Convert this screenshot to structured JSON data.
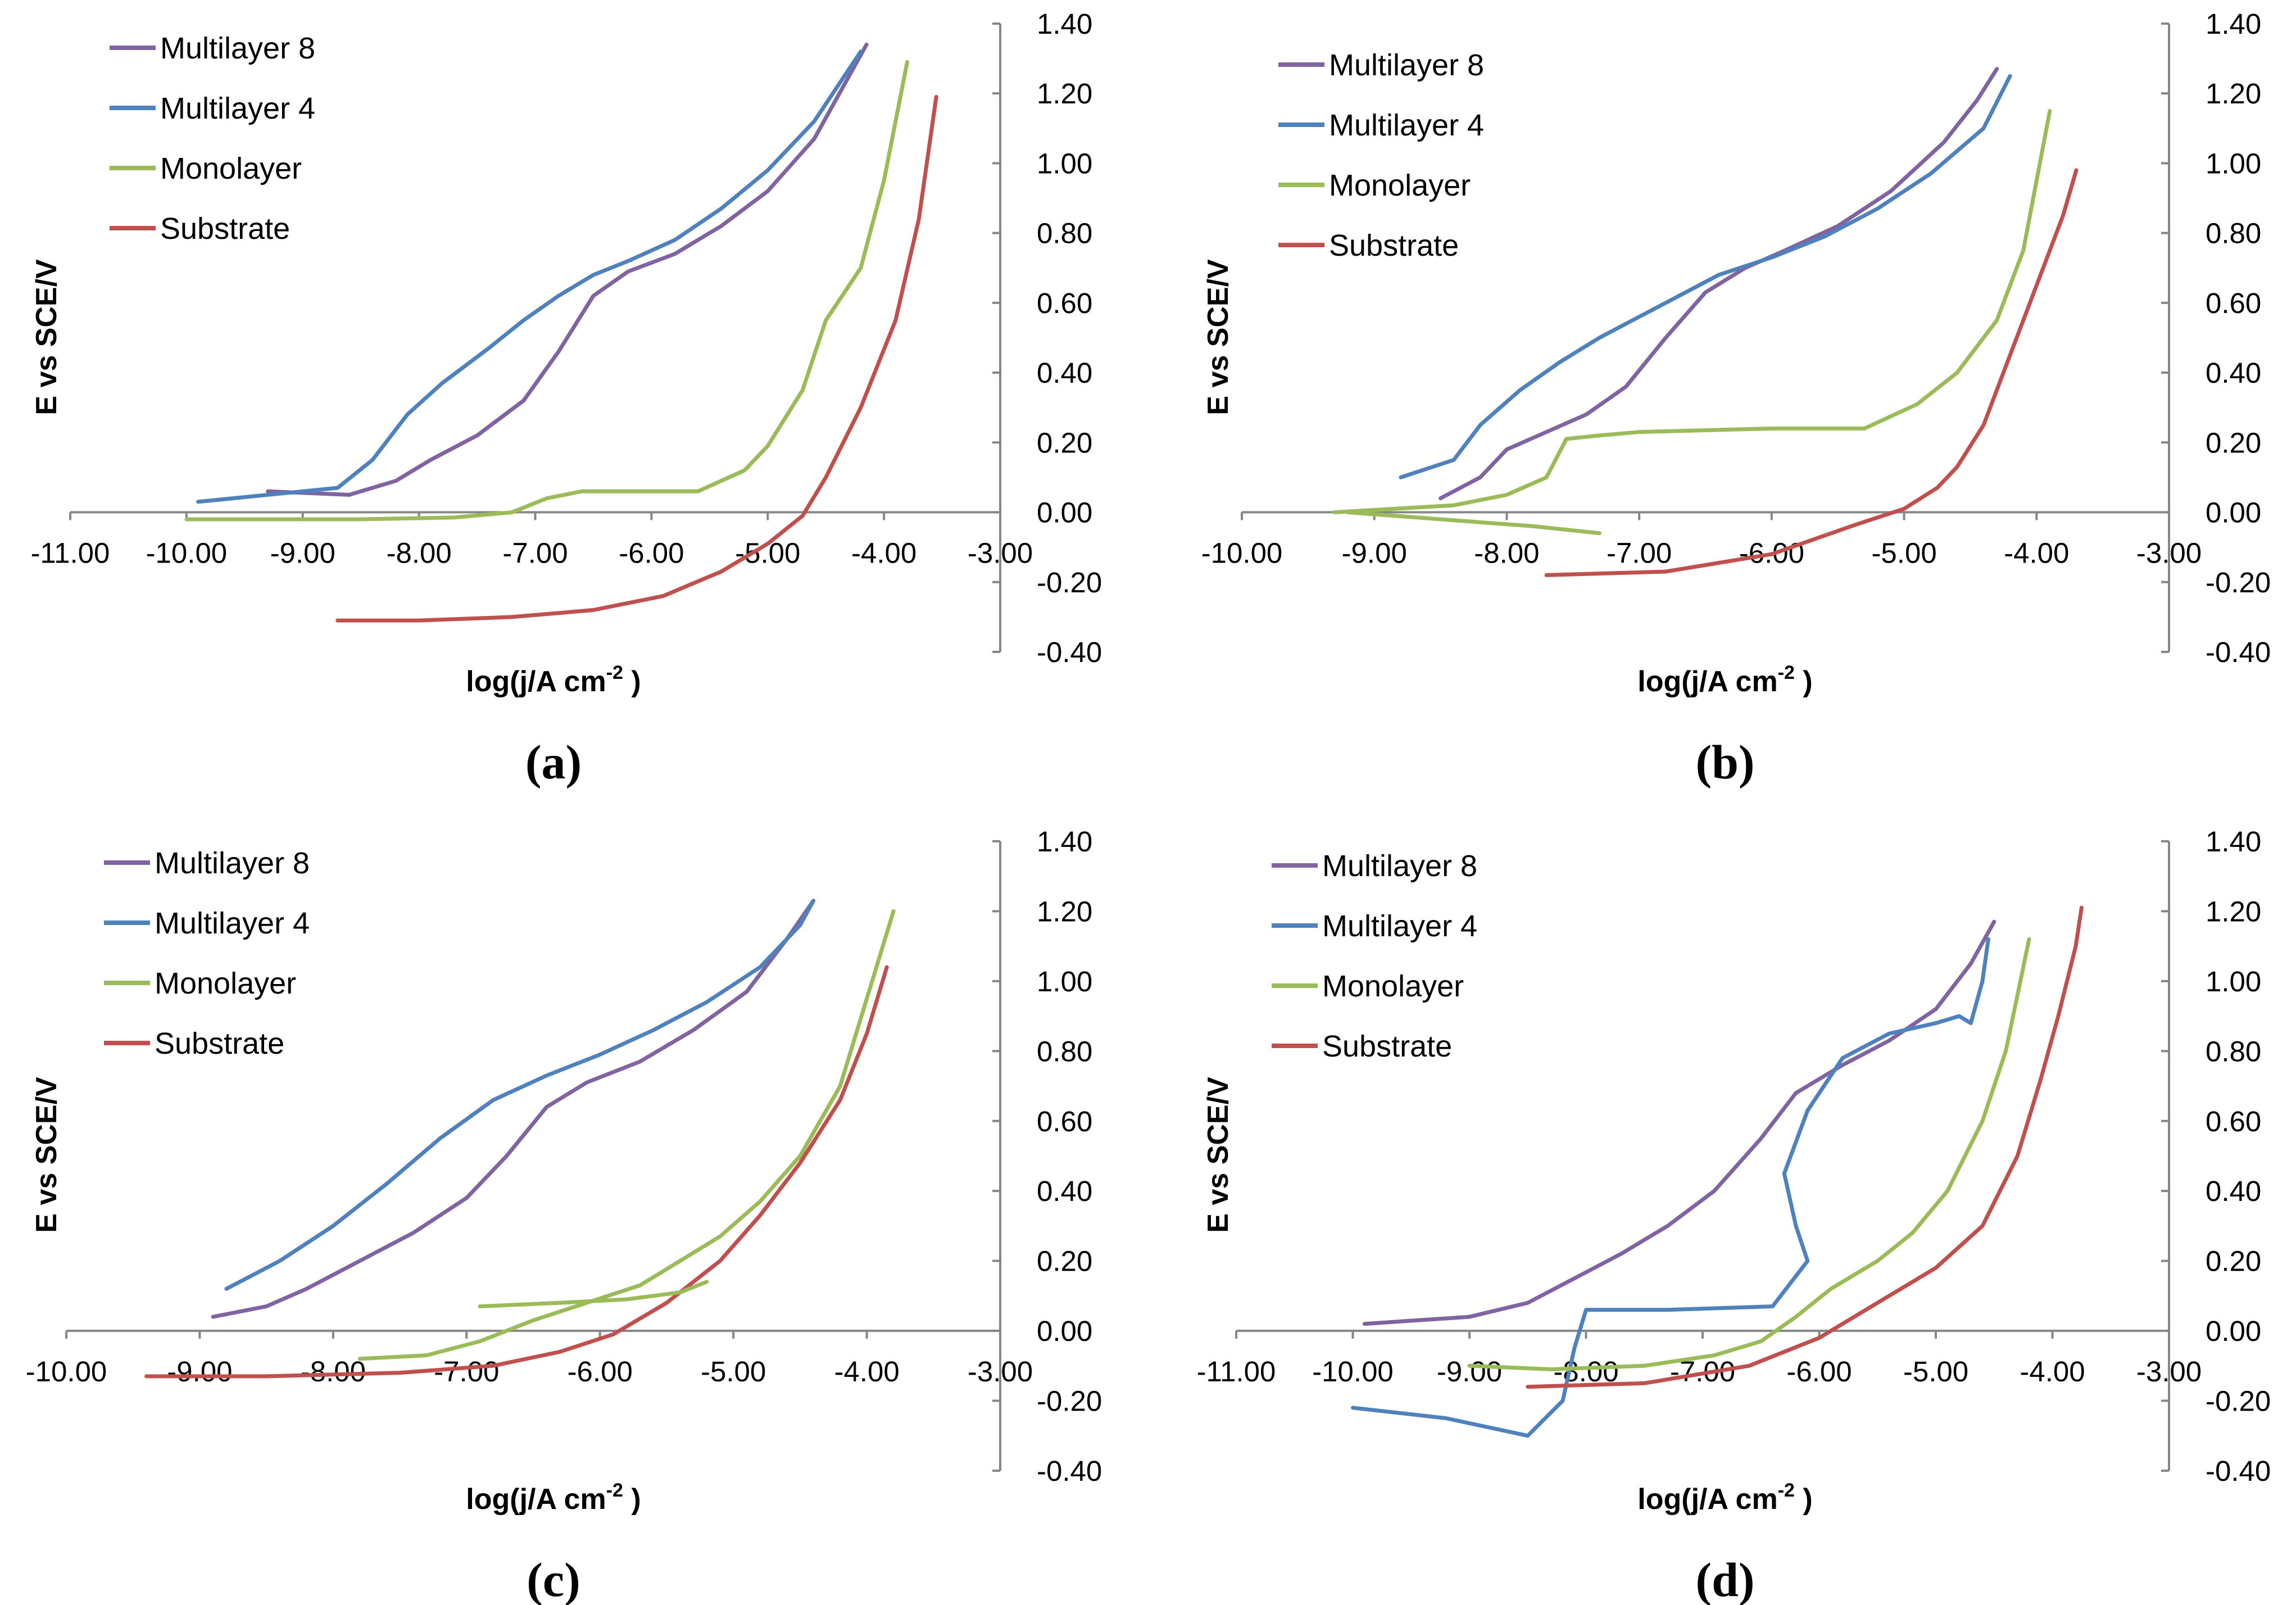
{
  "chart_data": [
    {
      "panel": "(a)",
      "type": "line",
      "xlabel": "log(j/A cm",
      "xlabel_sup": "-2",
      "xlabel_end": " )",
      "ylabel": "E vs SCE/V",
      "xlim": [
        -11.0,
        -3.0
      ],
      "ylim": [
        -0.4,
        1.4
      ],
      "x_ticks": [
        "-11.00",
        "-10.00",
        "-9.00",
        "-8.00",
        "-7.00",
        "-6.00",
        "-5.00",
        "-4.00",
        "-3.00"
      ],
      "y_ticks": [
        "-0.40",
        "-0.20",
        "0.00",
        "0.20",
        "0.40",
        "0.60",
        "0.80",
        "1.00",
        "1.20",
        "1.40"
      ],
      "legend": [
        "Multilayer 8",
        "Multilayer 4",
        "Monolayer",
        "Substrate"
      ],
      "series": [
        {
          "name": "Multilayer 8",
          "color": "#8064A2",
          "x": [
            -9.3,
            -8.6,
            -8.2,
            -7.9,
            -7.5,
            -7.1,
            -6.8,
            -6.5,
            -6.2,
            -5.8,
            -5.4,
            -5.0,
            -4.6,
            -4.3,
            -4.15
          ],
          "y": [
            0.06,
            0.05,
            0.09,
            0.15,
            0.22,
            0.32,
            0.46,
            0.62,
            0.69,
            0.74,
            0.82,
            0.92,
            1.07,
            1.25,
            1.34
          ]
        },
        {
          "name": "Multilayer 4",
          "color": "#4F81BD",
          "x": [
            -9.9,
            -8.7,
            -8.4,
            -8.1,
            -7.8,
            -7.4,
            -7.1,
            -6.8,
            -6.5,
            -6.2,
            -5.8,
            -5.4,
            -5.0,
            -4.6,
            -4.3,
            -4.2
          ],
          "y": [
            0.03,
            0.07,
            0.15,
            0.28,
            0.37,
            0.47,
            0.55,
            0.62,
            0.68,
            0.72,
            0.78,
            0.87,
            0.98,
            1.12,
            1.27,
            1.32
          ]
        },
        {
          "name": "Monolayer",
          "color": "#9BBB59",
          "x": [
            -10.0,
            -8.5,
            -7.7,
            -7.2,
            -6.9,
            -6.6,
            -5.6,
            -5.2,
            -5.0,
            -4.7,
            -4.5,
            -4.2,
            -4.0,
            -3.8
          ],
          "y": [
            -0.02,
            -0.02,
            -0.015,
            0.0,
            0.04,
            0.06,
            0.06,
            0.12,
            0.19,
            0.35,
            0.55,
            0.7,
            0.95,
            1.29
          ]
        },
        {
          "name": "Substrate",
          "color": "#C0504D",
          "x": [
            -8.7,
            -8.0,
            -7.2,
            -6.5,
            -5.9,
            -5.4,
            -5.0,
            -4.7,
            -4.5,
            -4.2,
            -3.9,
            -3.7,
            -3.55
          ],
          "y": [
            -0.31,
            -0.31,
            -0.3,
            -0.28,
            -0.24,
            -0.17,
            -0.09,
            -0.01,
            0.1,
            0.3,
            0.55,
            0.84,
            1.19
          ]
        }
      ]
    },
    {
      "panel": "(b)",
      "type": "line",
      "xlabel": "log(j/A cm",
      "xlabel_sup": "-2",
      "xlabel_end": " )",
      "ylabel": "E vs SCE/V",
      "xlim": [
        -10.0,
        -3.0
      ],
      "ylim": [
        -0.4,
        1.4
      ],
      "x_ticks": [
        "-10.00",
        "-9.00",
        "-8.00",
        "-7.00",
        "-6.00",
        "-5.00",
        "-4.00",
        "-3.00"
      ],
      "y_ticks": [
        "-0.40",
        "-0.20",
        "0.00",
        "0.20",
        "0.40",
        "0.60",
        "0.80",
        "1.00",
        "1.20",
        "1.40"
      ],
      "legend": [
        "Multilayer 8",
        "Multilayer 4",
        "Monolayer",
        "Substrate"
      ],
      "series": [
        {
          "name": "Multilayer 8",
          "color": "#8064A2",
          "x": [
            -8.5,
            -8.2,
            -8.0,
            -7.7,
            -7.4,
            -7.1,
            -6.8,
            -6.5,
            -6.2,
            -5.9,
            -5.5,
            -5.1,
            -4.7,
            -4.45,
            -4.3
          ],
          "y": [
            0.04,
            0.1,
            0.18,
            0.23,
            0.28,
            0.36,
            0.5,
            0.63,
            0.7,
            0.75,
            0.82,
            0.92,
            1.06,
            1.18,
            1.27
          ]
        },
        {
          "name": "Multilayer 4",
          "color": "#4F81BD",
          "x": [
            -8.8,
            -8.4,
            -8.2,
            -7.9,
            -7.6,
            -7.3,
            -7.0,
            -6.7,
            -6.4,
            -6.0,
            -5.6,
            -5.2,
            -4.8,
            -4.4,
            -4.2
          ],
          "y": [
            0.1,
            0.15,
            0.25,
            0.35,
            0.43,
            0.5,
            0.56,
            0.62,
            0.68,
            0.73,
            0.79,
            0.87,
            0.97,
            1.1,
            1.25
          ]
        },
        {
          "name": "Monolayer",
          "color": "#9BBB59",
          "x": [
            -9.3,
            -8.4,
            -8.0,
            -7.7,
            -7.55,
            -7.3,
            -7.0,
            -6.0,
            -5.3,
            -4.9,
            -4.6,
            -4.3,
            -4.1,
            -3.9
          ],
          "y": [
            0.0,
            0.02,
            0.05,
            0.1,
            0.21,
            0.22,
            0.23,
            0.24,
            0.24,
            0.31,
            0.4,
            0.55,
            0.75,
            1.15
          ]
        },
        {
          "name": "Substrate",
          "color": "#C0504D",
          "x": [
            -7.7,
            -6.8,
            -6.0,
            -5.4,
            -5.0,
            -4.75,
            -4.6,
            -4.4,
            -4.2,
            -4.0,
            -3.8,
            -3.7
          ],
          "y": [
            -0.18,
            -0.17,
            -0.12,
            -0.04,
            0.01,
            0.07,
            0.13,
            0.25,
            0.45,
            0.65,
            0.85,
            0.98
          ]
        },
        {
          "name": "Monolayer",
          "color": "#9BBB59",
          "x": [
            -9.2,
            -8.5,
            -7.8,
            -7.3
          ],
          "y": [
            0.0,
            -0.02,
            -0.04,
            -0.06
          ]
        }
      ]
    },
    {
      "panel": "(c)",
      "type": "line",
      "xlabel": "log(j/A cm",
      "xlabel_sup": "-2",
      "xlabel_end": " )",
      "ylabel": "E vs SCE/V",
      "xlim": [
        -10.0,
        -3.0
      ],
      "ylim": [
        -0.4,
        1.4
      ],
      "x_ticks": [
        "-10.00",
        "-9.00",
        "-8.00",
        "-7.00",
        "-6.00",
        "-5.00",
        "-4.00",
        "-3.00"
      ],
      "y_ticks": [
        "-0.40",
        "-0.20",
        "0.00",
        "0.20",
        "0.40",
        "0.60",
        "0.80",
        "1.00",
        "1.20",
        "1.40"
      ],
      "legend": [
        "Multilayer 8",
        "Multilayer 4",
        "Monolayer",
        "Substrate"
      ],
      "series": [
        {
          "name": "Multilayer 8",
          "color": "#8064A2",
          "x": [
            -8.9,
            -8.5,
            -8.2,
            -7.8,
            -7.4,
            -7.0,
            -6.7,
            -6.4,
            -6.1,
            -5.7,
            -5.3,
            -4.9,
            -4.6,
            -4.4
          ],
          "y": [
            0.04,
            0.07,
            0.12,
            0.2,
            0.28,
            0.38,
            0.5,
            0.64,
            0.71,
            0.77,
            0.86,
            0.97,
            1.12,
            1.23
          ]
        },
        {
          "name": "Multilayer 4",
          "color": "#4F81BD",
          "x": [
            -8.8,
            -8.4,
            -8.0,
            -7.6,
            -7.2,
            -6.8,
            -6.4,
            -6.0,
            -5.6,
            -5.2,
            -4.8,
            -4.5,
            -4.4
          ],
          "y": [
            0.12,
            0.2,
            0.3,
            0.42,
            0.55,
            0.66,
            0.73,
            0.79,
            0.86,
            0.94,
            1.04,
            1.16,
            1.23
          ]
        },
        {
          "name": "Monolayer",
          "color": "#9BBB59",
          "x": [
            -7.8,
            -7.3,
            -6.9,
            -6.5,
            -6.1,
            -5.7,
            -5.4,
            -5.1,
            -4.8,
            -4.5,
            -4.2,
            -4.0,
            -3.8
          ],
          "y": [
            -0.08,
            -0.07,
            -0.03,
            0.03,
            0.08,
            0.13,
            0.2,
            0.27,
            0.37,
            0.5,
            0.7,
            0.95,
            1.2
          ]
        },
        {
          "name": "Substrate",
          "color": "#C0504D",
          "x": [
            -9.4,
            -8.5,
            -7.5,
            -6.8,
            -6.3,
            -5.9,
            -5.5,
            -5.1,
            -4.8,
            -4.5,
            -4.2,
            -4.0,
            -3.85
          ],
          "y": [
            -0.13,
            -0.13,
            -0.12,
            -0.1,
            -0.06,
            -0.01,
            0.08,
            0.2,
            0.33,
            0.48,
            0.66,
            0.85,
            1.04
          ]
        },
        {
          "name": "Monolayer",
          "color": "#9BBB59",
          "x": [
            -6.9,
            -6.3,
            -5.8,
            -5.4,
            -5.2
          ],
          "y": [
            0.07,
            0.08,
            0.09,
            0.11,
            0.14
          ]
        }
      ]
    },
    {
      "panel": "(d)",
      "type": "line",
      "xlabel": "log(j/A cm",
      "xlabel_sup": "-2",
      "xlabel_end": " )",
      "ylabel": "E vs SCE/V",
      "xlim": [
        -11.0,
        -3.0
      ],
      "ylim": [
        -0.4,
        1.4
      ],
      "x_ticks": [
        "-11.00",
        "-10.00",
        "-9.00",
        "-8.00",
        "-7.00",
        "-6.00",
        "-5.00",
        "-4.00",
        "-3.00"
      ],
      "y_ticks": [
        "-0.40",
        "-0.20",
        "0.00",
        "0.20",
        "0.40",
        "0.60",
        "0.80",
        "1.00",
        "1.20",
        "1.40"
      ],
      "legend": [
        "Multilayer 8",
        "Multilayer 4",
        "Monolayer",
        "Substrate"
      ],
      "series": [
        {
          "name": "Multilayer 8",
          "color": "#8064A2",
          "x": [
            -9.9,
            -9.0,
            -8.5,
            -8.1,
            -7.7,
            -7.3,
            -6.9,
            -6.5,
            -6.2,
            -5.8,
            -5.4,
            -5.0,
            -4.7,
            -4.5
          ],
          "y": [
            0.02,
            0.04,
            0.08,
            0.15,
            0.22,
            0.3,
            0.4,
            0.55,
            0.68,
            0.76,
            0.83,
            0.92,
            1.05,
            1.17
          ]
        },
        {
          "name": "Multilayer 4",
          "color": "#4F81BD",
          "x": [
            -10.0,
            -9.2,
            -8.5,
            -8.2,
            -8.1,
            -8.0,
            -7.3,
            -6.4,
            -6.1,
            -6.2,
            -6.3,
            -6.1,
            -5.8,
            -5.4,
            -5.0,
            -4.8,
            -4.7,
            -4.6,
            -4.55
          ],
          "y": [
            -0.22,
            -0.25,
            -0.3,
            -0.2,
            -0.05,
            0.06,
            0.06,
            0.07,
            0.2,
            0.3,
            0.45,
            0.63,
            0.78,
            0.85,
            0.88,
            0.9,
            0.88,
            1.0,
            1.12
          ]
        },
        {
          "name": "Monolayer",
          "color": "#9BBB59",
          "x": [
            -9.0,
            -8.3,
            -7.5,
            -6.9,
            -6.5,
            -6.2,
            -5.9,
            -5.5,
            -5.2,
            -4.9,
            -4.6,
            -4.4,
            -4.3,
            -4.2
          ],
          "y": [
            -0.1,
            -0.11,
            -0.1,
            -0.07,
            -0.03,
            0.04,
            0.12,
            0.2,
            0.28,
            0.4,
            0.6,
            0.8,
            0.96,
            1.12
          ]
        },
        {
          "name": "Substrate",
          "color": "#C0504D",
          "x": [
            -8.5,
            -7.5,
            -6.6,
            -6.0,
            -5.5,
            -5.0,
            -4.6,
            -4.3,
            -4.1,
            -3.95,
            -3.8,
            -3.75
          ],
          "y": [
            -0.16,
            -0.15,
            -0.1,
            -0.02,
            0.08,
            0.18,
            0.3,
            0.5,
            0.72,
            0.9,
            1.1,
            1.21
          ]
        }
      ]
    }
  ]
}
